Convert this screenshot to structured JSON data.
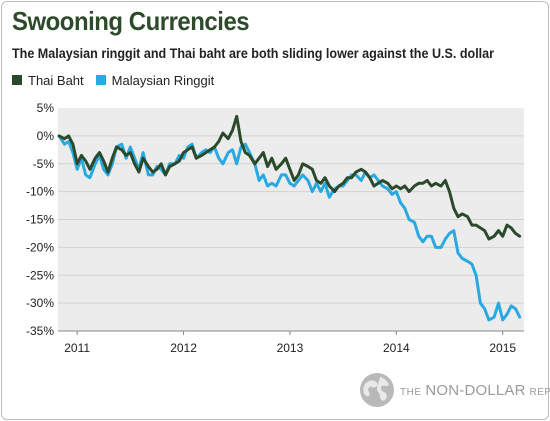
{
  "header": {
    "title": "Swooning Currencies",
    "subtitle": "The Malaysian ringgit and Thai baht are both sliding lower against the U.S. dollar"
  },
  "legend": {
    "items": [
      {
        "label": "Thai Baht",
        "color": "#2b4a2b"
      },
      {
        "label": "Malaysian Ringgit",
        "color": "#29a9e1"
      }
    ]
  },
  "brand": {
    "prefix": "THE",
    "name": "NON-DOLLAR",
    "suffix": "REPORT",
    "icon": "globe-icon"
  },
  "chart_data": {
    "type": "line",
    "title": "Swooning Currencies",
    "subtitle": "The Malaysian ringgit and Thai baht are both sliding lower against the U.S. dollar",
    "xlabel": "",
    "ylabel": "",
    "xlim": [
      2010.82,
      2015.2
    ],
    "ylim": [
      -35,
      5
    ],
    "x_ticks": [
      2011,
      2012,
      2013,
      2014,
      2015
    ],
    "x_tick_labels": [
      "2011",
      "2012",
      "2013",
      "2014",
      "2015"
    ],
    "y_ticks": [
      5,
      0,
      -5,
      -10,
      -15,
      -20,
      -25,
      -30,
      -35
    ],
    "y_tick_labels": [
      "5%",
      "0%",
      "-5%",
      "-10%",
      "-15%",
      "-20%",
      "-25%",
      "-30%",
      "-35%"
    ],
    "grid": "horizontal",
    "legend_position": "top-left",
    "background": "#ececec",
    "series": [
      {
        "name": "Thai Baht",
        "color": "#2b4a2b",
        "x": [
          2010.83,
          2010.88,
          2010.92,
          2010.96,
          2011.0,
          2011.04,
          2011.08,
          2011.12,
          2011.17,
          2011.21,
          2011.25,
          2011.29,
          2011.33,
          2011.37,
          2011.42,
          2011.46,
          2011.5,
          2011.54,
          2011.58,
          2011.62,
          2011.67,
          2011.71,
          2011.75,
          2011.79,
          2011.83,
          2011.87,
          2011.92,
          2011.96,
          2012.0,
          2012.04,
          2012.08,
          2012.12,
          2012.17,
          2012.21,
          2012.25,
          2012.29,
          2012.33,
          2012.37,
          2012.42,
          2012.46,
          2012.5,
          2012.54,
          2012.58,
          2012.62,
          2012.67,
          2012.71,
          2012.75,
          2012.79,
          2012.83,
          2012.87,
          2012.92,
          2012.96,
          2013.0,
          2013.04,
          2013.08,
          2013.12,
          2013.17,
          2013.21,
          2013.25,
          2013.29,
          2013.33,
          2013.37,
          2013.42,
          2013.46,
          2013.5,
          2013.54,
          2013.58,
          2013.62,
          2013.67,
          2013.71,
          2013.75,
          2013.79,
          2013.83,
          2013.87,
          2013.92,
          2013.96,
          2014.0,
          2014.04,
          2014.08,
          2014.12,
          2014.17,
          2014.21,
          2014.25,
          2014.29,
          2014.33,
          2014.37,
          2014.42,
          2014.46,
          2014.5,
          2014.54,
          2014.58,
          2014.62,
          2014.67,
          2014.71,
          2014.75,
          2014.79,
          2014.83,
          2014.87,
          2014.92,
          2014.96,
          2015.0,
          2015.04,
          2015.08,
          2015.12,
          2015.16
        ],
        "values": [
          0,
          -0.5,
          0,
          -1.5,
          -5,
          -3.5,
          -4.5,
          -6,
          -4,
          -3,
          -4.5,
          -6.5,
          -4,
          -2,
          -2.5,
          -3.5,
          -3,
          -5,
          -6.5,
          -4,
          -5.5,
          -6.5,
          -6,
          -5,
          -7,
          -5.5,
          -5,
          -4.5,
          -3,
          -2.5,
          -2,
          -4,
          -3.5,
          -3,
          -2.5,
          -2,
          -1,
          0.5,
          -0.5,
          1,
          3.5,
          -1,
          -3,
          -3.5,
          -5,
          -4,
          -3,
          -5.5,
          -4,
          -6,
          -5,
          -4,
          -6,
          -8,
          -7,
          -5,
          -5.5,
          -6,
          -8,
          -8.5,
          -7.5,
          -9,
          -10,
          -9,
          -8.5,
          -7.5,
          -7.5,
          -6.5,
          -6,
          -6.5,
          -7.5,
          -9,
          -8.5,
          -8,
          -8.5,
          -9.5,
          -9,
          -9.5,
          -9,
          -10,
          -9,
          -8.5,
          -8.5,
          -8,
          -9,
          -8.5,
          -9,
          -8,
          -10,
          -13,
          -14.5,
          -14,
          -14.5,
          -16,
          -16,
          -16.5,
          -17,
          -18.5,
          -18,
          -17,
          -18,
          -16,
          -16.5,
          -17.5,
          -18
        ]
      },
      {
        "name": "Malaysian Ringgit",
        "color": "#29a9e1",
        "x": [
          2010.83,
          2010.88,
          2010.92,
          2010.96,
          2011.0,
          2011.04,
          2011.08,
          2011.12,
          2011.17,
          2011.21,
          2011.25,
          2011.29,
          2011.33,
          2011.37,
          2011.42,
          2011.46,
          2011.5,
          2011.54,
          2011.58,
          2011.62,
          2011.67,
          2011.71,
          2011.75,
          2011.79,
          2011.83,
          2011.87,
          2011.92,
          2011.96,
          2012.0,
          2012.04,
          2012.08,
          2012.12,
          2012.17,
          2012.21,
          2012.25,
          2012.29,
          2012.33,
          2012.37,
          2012.42,
          2012.46,
          2012.5,
          2012.54,
          2012.58,
          2012.62,
          2012.67,
          2012.71,
          2012.75,
          2012.79,
          2012.83,
          2012.87,
          2012.92,
          2012.96,
          2013.0,
          2013.04,
          2013.08,
          2013.12,
          2013.17,
          2013.21,
          2013.25,
          2013.29,
          2013.33,
          2013.37,
          2013.42,
          2013.46,
          2013.5,
          2013.54,
          2013.58,
          2013.62,
          2013.67,
          2013.71,
          2013.75,
          2013.79,
          2013.83,
          2013.87,
          2013.92,
          2013.96,
          2014.0,
          2014.04,
          2014.08,
          2014.12,
          2014.17,
          2014.21,
          2014.25,
          2014.29,
          2014.33,
          2014.37,
          2014.42,
          2014.46,
          2014.5,
          2014.54,
          2014.58,
          2014.62,
          2014.67,
          2014.71,
          2014.75,
          2014.79,
          2014.83,
          2014.87,
          2014.92,
          2014.96,
          2015.0,
          2015.04,
          2015.08,
          2015.12,
          2015.16
        ],
        "values": [
          0,
          -1.5,
          -1,
          -3,
          -6,
          -4,
          -7,
          -7.5,
          -5,
          -3.5,
          -6,
          -7,
          -5,
          -2,
          -1.5,
          -4,
          -2,
          -4,
          -6,
          -3,
          -7,
          -7,
          -5.5,
          -6,
          -7,
          -5,
          -5,
          -3.5,
          -4,
          -2,
          -1.5,
          -4,
          -3,
          -2.5,
          -3,
          -2,
          -4,
          -5,
          -3,
          -2.5,
          -5,
          -2,
          -1.5,
          -3,
          -5,
          -8,
          -7,
          -9,
          -8.5,
          -9,
          -7,
          -7,
          -8.5,
          -9,
          -8,
          -7,
          -8,
          -10,
          -8.5,
          -10,
          -8.5,
          -11,
          -9.5,
          -9,
          -9,
          -8,
          -7,
          -7,
          -8,
          -6.5,
          -7.5,
          -7,
          -8,
          -9,
          -9.5,
          -10.5,
          -10,
          -12,
          -13,
          -15,
          -15.5,
          -18,
          -19,
          -18,
          -18,
          -20,
          -20,
          -18.5,
          -17.5,
          -17,
          -21,
          -22,
          -22.5,
          -23,
          -25,
          -30,
          -31,
          -33,
          -32.5,
          -30,
          -33,
          -32,
          -30.5,
          -31,
          -32.5
        ]
      }
    ]
  }
}
